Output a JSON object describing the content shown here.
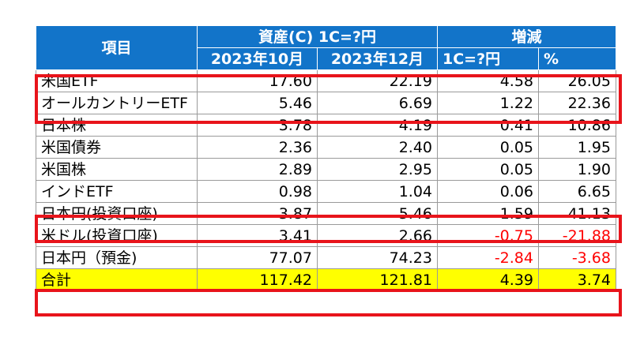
{
  "header": {
    "item": "項目",
    "assets_group": "資産(C) 1C=?円",
    "change_group": "増減",
    "col_oct": "2023年10月",
    "col_dec": "2023年12月",
    "col_diff": "1C=?円",
    "col_pct": "%"
  },
  "rows": [
    {
      "label": "米国ETF",
      "oct": "17.60",
      "dec": "22.19",
      "diff": "4.58",
      "pct": "26.05"
    },
    {
      "label": "オールカントリーETF",
      "oct": "5.46",
      "dec": "6.69",
      "diff": "1.22",
      "pct": "22.36"
    },
    {
      "label": "日本株",
      "oct": "3.78",
      "dec": "4.19",
      "diff": "0.41",
      "pct": "10.86"
    },
    {
      "label": "米国債券",
      "oct": "2.36",
      "dec": "2.40",
      "diff": "0.05",
      "pct": "1.95"
    },
    {
      "label": "米国株",
      "oct": "2.89",
      "dec": "2.95",
      "diff": "0.05",
      "pct": "1.90"
    },
    {
      "label": "インドETF",
      "oct": "0.98",
      "dec": "1.04",
      "diff": "0.06",
      "pct": "6.65"
    },
    {
      "label": "日本円(投資口座)",
      "oct": "3.87",
      "dec": "5.46",
      "diff": "1.59",
      "pct": "41.13"
    },
    {
      "label": "米ドル(投資口座)",
      "oct": "3.41",
      "dec": "2.66",
      "diff": "-0.75",
      "pct": "-21.88"
    },
    {
      "label": "日本円（預金)",
      "oct": "77.07",
      "dec": "74.23",
      "diff": "-2.84",
      "pct": "-3.68"
    }
  ],
  "total": {
    "label": "合計",
    "oct": "117.42",
    "dec": "121.81",
    "diff": "4.39",
    "pct": "3.74"
  },
  "colors": {
    "header_bg": "#1274c9",
    "highlight_border": "#e8141b",
    "total_bg": "#ffff00",
    "negative_text": "#ff0000"
  }
}
